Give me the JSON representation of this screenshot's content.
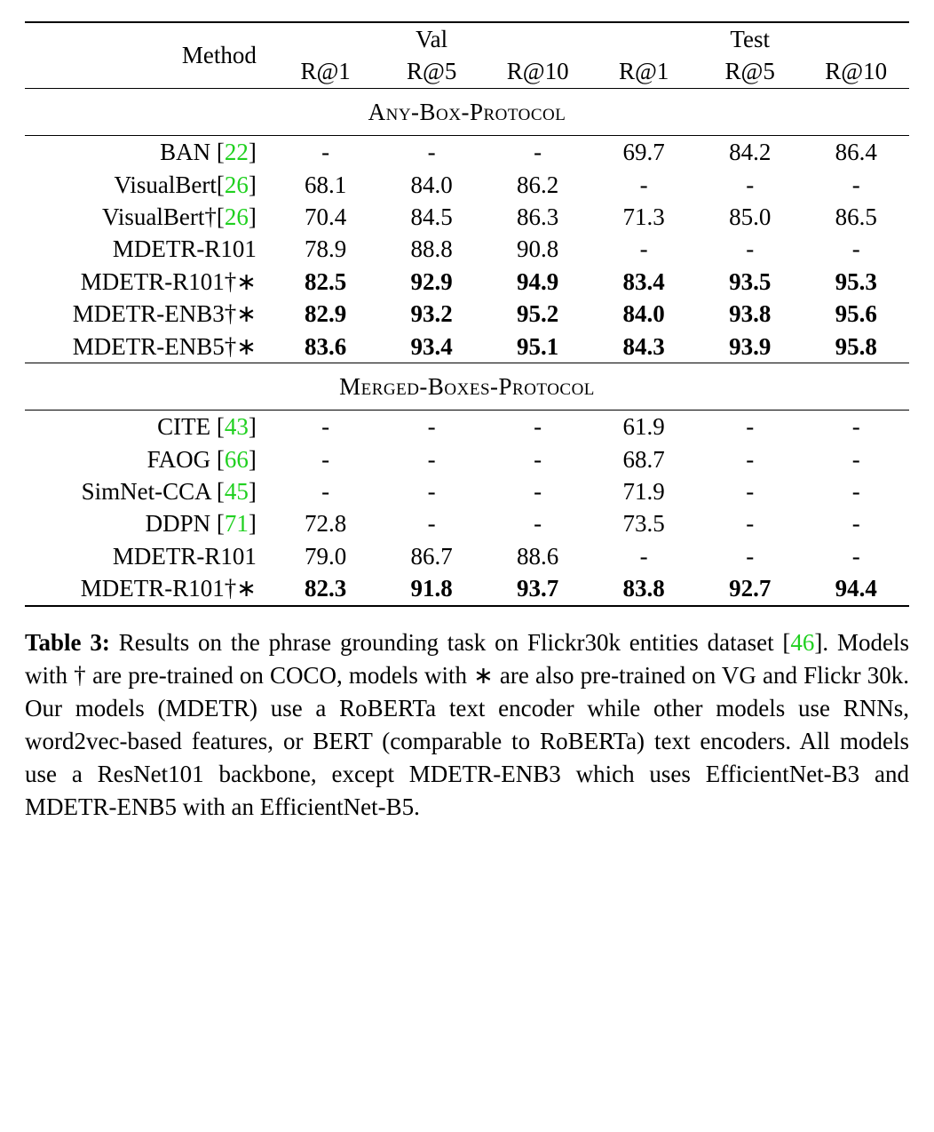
{
  "header": {
    "method": "Method",
    "val": "Val",
    "test": "Test",
    "sub": [
      "R@1",
      "R@5",
      "R@10",
      "R@1",
      "R@5",
      "R@10"
    ]
  },
  "sections": {
    "anybox": "Any-Box-Protocol",
    "merged": "Merged-Boxes-Protocol"
  },
  "rows_any": [
    {
      "m": "BAN",
      "cite": "22",
      "suf": "",
      "vals": [
        "-",
        "-",
        "-",
        "69.7",
        "84.2",
        "86.4"
      ],
      "bold": [
        false,
        false,
        false,
        false,
        false,
        false
      ]
    },
    {
      "m": "VisualBert",
      "cite": "26",
      "suf": "",
      "vals": [
        "68.1",
        "84.0",
        "86.2",
        "-",
        "-",
        "-"
      ],
      "bold": [
        false,
        false,
        false,
        false,
        false,
        false
      ]
    },
    {
      "m": "VisualBert†",
      "cite": "26",
      "suf": "",
      "vals": [
        "70.4",
        "84.5",
        "86.3",
        "71.3",
        "85.0",
        "86.5"
      ],
      "bold": [
        false,
        false,
        false,
        false,
        false,
        false
      ]
    },
    {
      "m": "MDETR-R101",
      "cite": "",
      "suf": "",
      "vals": [
        "78.9",
        "88.8",
        "90.8",
        "-",
        "-",
        "-"
      ],
      "bold": [
        false,
        false,
        false,
        false,
        false,
        false
      ]
    },
    {
      "m": "MDETR-R101†∗",
      "cite": "",
      "suf": "",
      "vals": [
        "82.5",
        "92.9",
        "94.9",
        "83.4",
        "93.5",
        "95.3"
      ],
      "bold": [
        true,
        true,
        true,
        true,
        true,
        true
      ]
    },
    {
      "m": "MDETR-ENB3†∗",
      "cite": "",
      "suf": "",
      "vals": [
        "82.9",
        "93.2",
        "95.2",
        "84.0",
        "93.8",
        "95.6"
      ],
      "bold": [
        true,
        true,
        true,
        true,
        true,
        true
      ]
    },
    {
      "m": "MDETR-ENB5†∗",
      "cite": "",
      "suf": "",
      "vals": [
        "83.6",
        "93.4",
        "95.1",
        "84.3",
        "93.9",
        "95.8"
      ],
      "bold": [
        true,
        true,
        true,
        true,
        true,
        true
      ]
    }
  ],
  "rows_merged": [
    {
      "m": "CITE",
      "cite": "43",
      "suf": "",
      "vals": [
        "-",
        "-",
        "-",
        "61.9",
        "-",
        "-"
      ],
      "bold": [
        false,
        false,
        false,
        false,
        false,
        false
      ]
    },
    {
      "m": "FAOG",
      "cite": "66",
      "suf": "",
      "vals": [
        "-",
        "-",
        "-",
        "68.7",
        "-",
        "-"
      ],
      "bold": [
        false,
        false,
        false,
        false,
        false,
        false
      ]
    },
    {
      "m": "SimNet-CCA",
      "cite": "45",
      "suf": "",
      "vals": [
        "-",
        "-",
        "-",
        "71.9",
        "-",
        "-"
      ],
      "bold": [
        false,
        false,
        false,
        false,
        false,
        false
      ]
    },
    {
      "m": "DDPN",
      "cite": "71",
      "suf": "",
      "vals": [
        "72.8",
        "-",
        "-",
        "73.5",
        "-",
        "-"
      ],
      "bold": [
        false,
        false,
        false,
        false,
        false,
        false
      ]
    },
    {
      "m": "MDETR-R101",
      "cite": "",
      "suf": "",
      "vals": [
        "79.0",
        "86.7",
        "88.6",
        "-",
        "-",
        "-"
      ],
      "bold": [
        false,
        false,
        false,
        false,
        false,
        false
      ]
    },
    {
      "m": "MDETR-R101†∗",
      "cite": "",
      "suf": "",
      "vals": [
        "82.3",
        "91.8",
        "93.7",
        "83.8",
        "92.7",
        "94.4"
      ],
      "bold": [
        true,
        true,
        true,
        true,
        true,
        true
      ]
    }
  ],
  "caption": {
    "label": "Table 3:",
    "pre": " Results on the phrase grounding task on Flickr30k entities dataset [",
    "cite": "46",
    "post": "]. Models with † are pre-trained on COCO, models with ∗ are also pre-trained on VG and Flickr 30k. Our models (MDETR) use a RoBERTa text encoder while other models use RNNs, word2vec-based features, or BERT (comparable to RoBERTa) text encoders. All models use a ResNet101 backbone, except MDETR-ENB3 which uses EfficientNet-B3 and MDETR-ENB5 with an EfficientNet-B5."
  },
  "colors": {
    "cite": "#1fd01f",
    "text": "#000000",
    "bg": "#ffffff"
  }
}
